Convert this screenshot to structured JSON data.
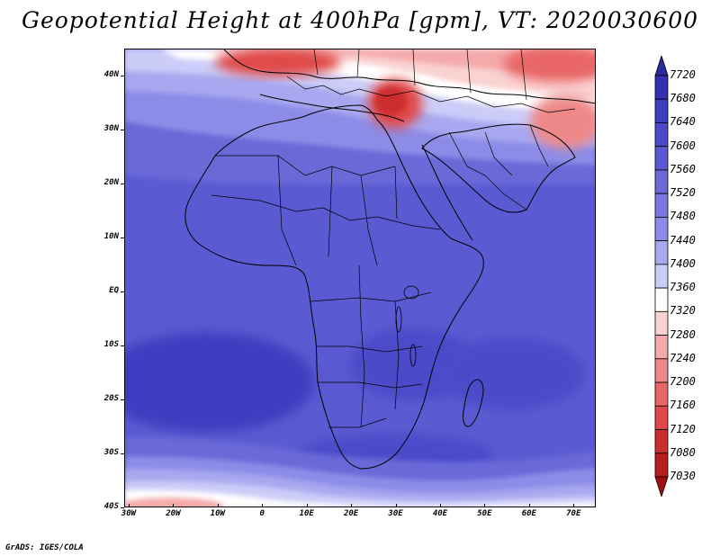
{
  "title": "Geopotential Height at 400hPa [gpm], VT: 2020030600",
  "credit": "GrADS: IGES/COLA",
  "lat_labels": [
    {
      "text": "40N",
      "lat": 40
    },
    {
      "text": "30N",
      "lat": 30
    },
    {
      "text": "20N",
      "lat": 20
    },
    {
      "text": "10N",
      "lat": 10
    },
    {
      "text": "EQ",
      "lat": 0
    },
    {
      "text": "10S",
      "lat": -10
    },
    {
      "text": "20S",
      "lat": -20
    },
    {
      "text": "30S",
      "lat": -30
    },
    {
      "text": "40S",
      "lat": -40
    }
  ],
  "lon_labels": [
    {
      "text": "30W",
      "lon": -30
    },
    {
      "text": "20W",
      "lon": -20
    },
    {
      "text": "10W",
      "lon": -10
    },
    {
      "text": "0",
      "lon": 0
    },
    {
      "text": "10E",
      "lon": 10
    },
    {
      "text": "20E",
      "lon": 20
    },
    {
      "text": "30E",
      "lon": 30
    },
    {
      "text": "40E",
      "lon": 40
    },
    {
      "text": "50E",
      "lon": 50
    },
    {
      "text": "60E",
      "lon": 60
    },
    {
      "text": "70E",
      "lon": 70
    }
  ],
  "map_extent": {
    "lon_min": -31,
    "lon_max": 75,
    "lat_min": -40,
    "lat_max": 45
  },
  "colorbar": {
    "levels": [
      "7720",
      "7680",
      "7640",
      "7600",
      "7560",
      "7520",
      "7480",
      "7440",
      "7400",
      "7360",
      "7320",
      "7280",
      "7240",
      "7200",
      "7160",
      "7120",
      "7080",
      "7030"
    ],
    "colors": [
      "#2a2a9c",
      "#3232b0",
      "#3d3dc0",
      "#4b4bca",
      "#5a5ad2",
      "#6969d8",
      "#7878e0",
      "#8c8ce8",
      "#a8a8f0",
      "#ccccf8",
      "#ffffff",
      "#fad2d2",
      "#f4aaaa",
      "#ee8888",
      "#e86666",
      "#e04848",
      "#cc2e2e",
      "#b81e1e",
      "#a01010"
    ]
  }
}
